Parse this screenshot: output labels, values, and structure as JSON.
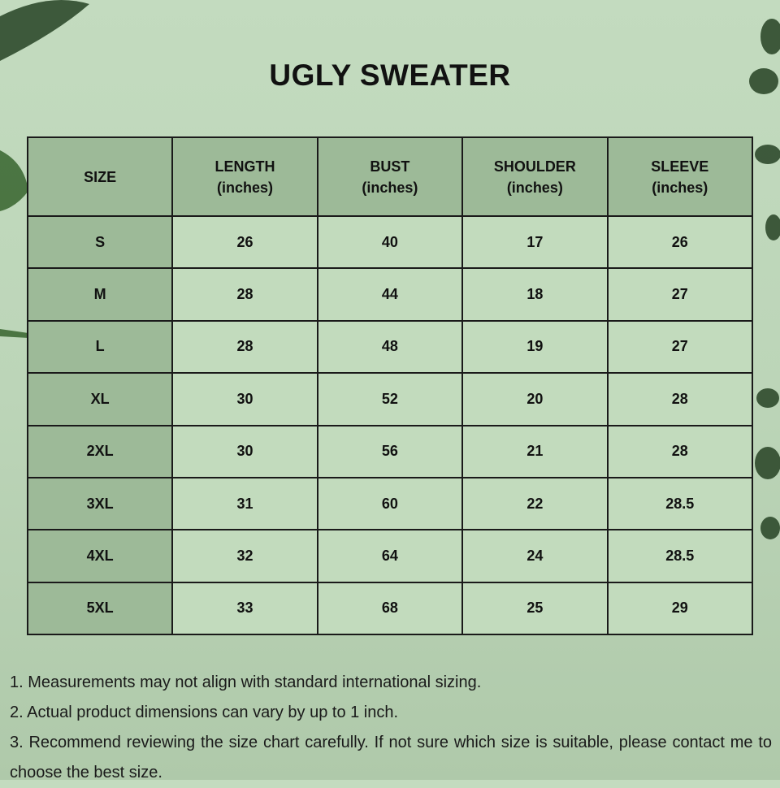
{
  "title": "UGLY SWEATER",
  "table": {
    "headers": [
      {
        "main": "SIZE",
        "unit": ""
      },
      {
        "main": "LENGTH",
        "unit": "(inches)"
      },
      {
        "main": "BUST",
        "unit": "(inches)"
      },
      {
        "main": "SHOULDER",
        "unit": "(inches)"
      },
      {
        "main": "SLEEVE",
        "unit": "(inches)"
      }
    ],
    "rows": [
      [
        "S",
        "26",
        "40",
        "17",
        "26"
      ],
      [
        "M",
        "28",
        "44",
        "18",
        "27"
      ],
      [
        "L",
        "28",
        "48",
        "19",
        "27"
      ],
      [
        "XL",
        "30",
        "52",
        "20",
        "28"
      ],
      [
        "2XL",
        "30",
        "56",
        "21",
        "28"
      ],
      [
        "3XL",
        "31",
        "60",
        "22",
        "28.5"
      ],
      [
        "4XL",
        "32",
        "64",
        "24",
        "28.5"
      ],
      [
        "5XL",
        "33",
        "68",
        "25",
        "29"
      ]
    ]
  },
  "notes": [
    "1. Measurements may not align with standard international sizing.",
    "2. Actual product dimensions can vary by up to 1 inch.",
    "3. Recommend reviewing the size chart carefully. If not sure which size is suitable, please contact me to choose the best size."
  ],
  "colors": {
    "header_bg": "#9dba98",
    "cell_bg": "#c2dbbd",
    "background": "#bcd5b8"
  }
}
